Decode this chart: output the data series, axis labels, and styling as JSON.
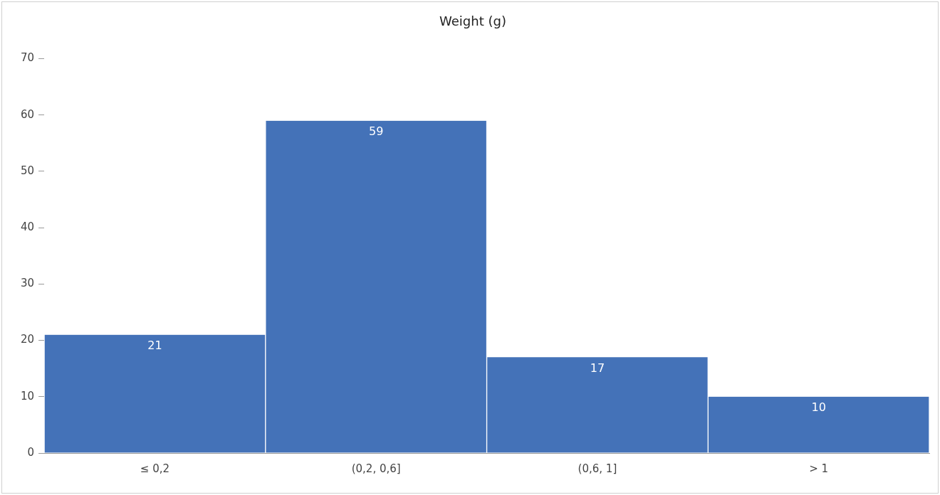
{
  "chart_data": {
    "type": "bar",
    "title": "Weight (g)",
    "categories": [
      "≤ 0,2",
      "(0,2, 0,6]",
      "(0,6, 1]",
      "> 1"
    ],
    "values": [
      21,
      59,
      17,
      10
    ],
    "color": "#4472b8",
    "ylim": [
      0,
      70
    ],
    "yticks": [
      0,
      10,
      20,
      30,
      40,
      50,
      60,
      70
    ],
    "grid": false,
    "legend": false,
    "data_labels": true
  }
}
